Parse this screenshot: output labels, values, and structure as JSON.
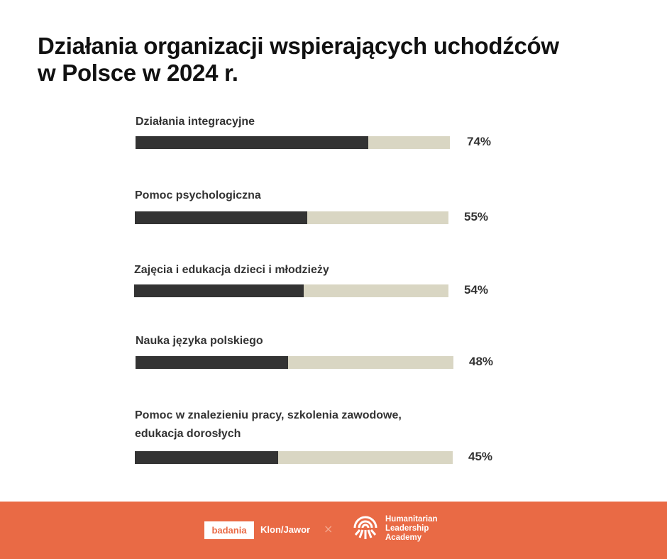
{
  "title_line1": "Działania organizacji wspierających uchodźców",
  "title_line2": "w Polsce w 2024 r.",
  "chart_data": {
    "type": "bar",
    "orientation": "horizontal",
    "title": "Działania organizacji wspierających uchodźców w Polsce w 2024 r.",
    "categories": [
      "Działania integracyjne",
      "Pomoc psychologiczna",
      "Zajęcia i edukacja dzieci i młodzieży",
      "Nauka języka polskiego",
      "Pomoc w znalezieniu pracy, szkolenia zawodowe, edukacja dorosłych"
    ],
    "label_lines": [
      [
        "Działania integracyjne"
      ],
      [
        "Pomoc psychologiczna"
      ],
      [
        "Zajęcia i edukacja dzieci i młodzieży"
      ],
      [
        "Nauka języka polskiego"
      ],
      [
        "Pomoc w znalezieniu pracy, szkolenia zawodowe,",
        "edukacja dorosłych"
      ]
    ],
    "values": [
      74,
      55,
      54,
      48,
      45
    ],
    "value_labels": [
      "74%",
      "55%",
      "54%",
      "48%",
      "45%"
    ],
    "xlim": [
      0,
      100
    ],
    "colors": {
      "fill": "#333333",
      "track": "#d9d6c3"
    }
  },
  "footer": {
    "badania": "badania",
    "klon": "Klon/Jawor",
    "separator": "×",
    "hla": [
      "Humanitarian",
      "Leadership",
      "Academy"
    ],
    "color": "#e96a45"
  }
}
